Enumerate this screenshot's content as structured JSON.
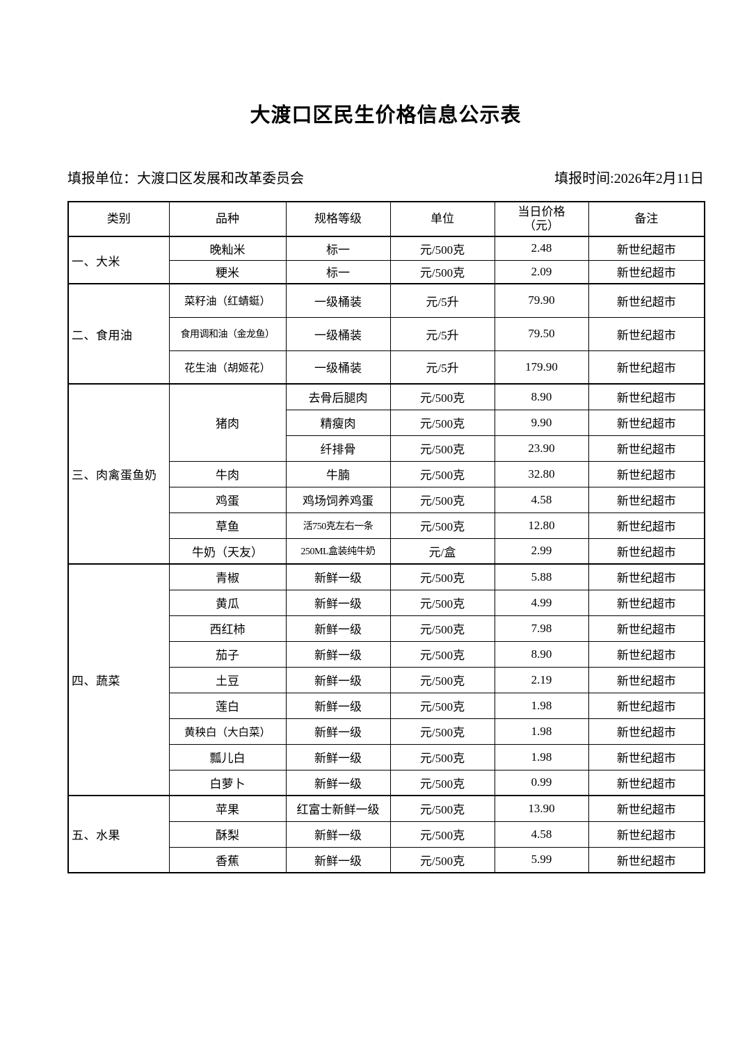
{
  "page": {
    "title": "大渡口区民生价格信息公示表",
    "reporting_unit_label": "填报单位：",
    "reporting_unit": "大渡口区发展和改革委员会",
    "report_time_label": "填报时间:",
    "report_time": "2026年2月11日"
  },
  "colors": {
    "text": "#000000",
    "border": "#000000",
    "background": "#ffffff"
  },
  "table": {
    "headers": [
      {
        "label": "类别"
      },
      {
        "label": "品种"
      },
      {
        "label": "规格等级"
      },
      {
        "label": "单位"
      },
      {
        "label": "当日价格",
        "sub": "（元）"
      },
      {
        "label": "备注"
      }
    ],
    "sections": [
      {
        "category": "一、大米",
        "rows": [
          {
            "variety": "晚籼米",
            "spec": "标一",
            "unit": "元/500克",
            "price": "2.48",
            "note": "新世纪超市"
          },
          {
            "variety": "粳米",
            "spec": "标一",
            "unit": "元/500克",
            "price": "2.09",
            "note": "新世纪超市"
          }
        ]
      },
      {
        "category": "二、食用油",
        "rows": [
          {
            "variety": "菜籽油（红蜻蜓）",
            "spec": "一级桶装",
            "unit": "元/5升",
            "price": "79.90",
            "note": "新世纪超市"
          },
          {
            "variety": "食用调和油（金龙鱼）",
            "spec": "一级桶装",
            "unit": "元/5升",
            "price": "79.50",
            "note": "新世纪超市"
          },
          {
            "variety": "花生油（胡姬花）",
            "spec": "一级桶装",
            "unit": "元/5升",
            "price": "179.90",
            "note": "新世纪超市"
          }
        ]
      },
      {
        "category": "三、肉禽蛋鱼奶",
        "rows": [
          {
            "variety": "猪肉",
            "variety_rowspan": 3,
            "spec": "去骨后腿肉",
            "unit": "元/500克",
            "price": "8.90",
            "note": "新世纪超市"
          },
          {
            "spec": "精瘦肉",
            "unit": "元/500克",
            "price": "9.90",
            "note": "新世纪超市"
          },
          {
            "spec": "纤排骨",
            "unit": "元/500克",
            "price": "23.90",
            "note": "新世纪超市"
          },
          {
            "variety": "牛肉",
            "spec": "牛腩",
            "unit": "元/500克",
            "price": "32.80",
            "note": "新世纪超市"
          },
          {
            "variety": "鸡蛋",
            "spec": "鸡场饲养鸡蛋",
            "unit": "元/500克",
            "price": "4.58",
            "note": "新世纪超市"
          },
          {
            "variety": "草鱼",
            "spec": "活750克左右一条",
            "unit": "元/500克",
            "price": "12.80",
            "note": "新世纪超市"
          },
          {
            "variety": "牛奶（天友）",
            "spec": "250ML盒装纯牛奶",
            "unit": "元/盒",
            "price": "2.99",
            "note": "新世纪超市"
          }
        ]
      },
      {
        "category": "四、蔬菜",
        "rows": [
          {
            "variety": "青椒",
            "spec": "新鲜一级",
            "unit": "元/500克",
            "price": "5.88",
            "note": "新世纪超市"
          },
          {
            "variety": "黄瓜",
            "spec": "新鲜一级",
            "unit": "元/500克",
            "price": "4.99",
            "note": "新世纪超市"
          },
          {
            "variety": "西红柿",
            "spec": "新鲜一级",
            "unit": "元/500克",
            "price": "7.98",
            "note": "新世纪超市"
          },
          {
            "variety": "茄子",
            "spec": "新鲜一级",
            "unit": "元/500克",
            "price": "8.90",
            "note": "新世纪超市"
          },
          {
            "variety": "土豆",
            "spec": "新鲜一级",
            "unit": "元/500克",
            "price": "2.19",
            "note": "新世纪超市"
          },
          {
            "variety": "莲白",
            "spec": "新鲜一级",
            "unit": "元/500克",
            "price": "1.98",
            "note": "新世纪超市"
          },
          {
            "variety": "黄秧白（大白菜）",
            "spec": "新鲜一级",
            "unit": "元/500克",
            "price": "1.98",
            "note": "新世纪超市"
          },
          {
            "variety": "瓢儿白",
            "spec": "新鲜一级",
            "unit": "元/500克",
            "price": "1.98",
            "note": "新世纪超市"
          },
          {
            "variety": "白萝卜",
            "spec": "新鲜一级",
            "unit": "元/500克",
            "price": "0.99",
            "note": "新世纪超市"
          }
        ]
      },
      {
        "category": "五、水果",
        "rows": [
          {
            "variety": "苹果",
            "spec": "红富士新鲜一级",
            "unit": "元/500克",
            "price": "13.90",
            "note": "新世纪超市"
          },
          {
            "variety": "酥梨",
            "spec": "新鲜一级",
            "unit": "元/500克",
            "price": "4.58",
            "note": "新世纪超市"
          },
          {
            "variety": "香蕉",
            "spec": "新鲜一级",
            "unit": "元/500克",
            "price": "5.99",
            "note": "新世纪超市"
          }
        ]
      }
    ]
  }
}
